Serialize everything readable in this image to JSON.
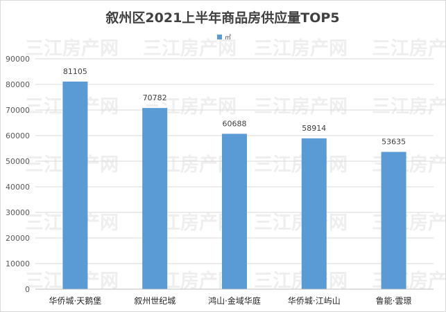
{
  "chart_data": {
    "type": "bar",
    "title": "叙州区2021上半年商品房供应量TOP5",
    "legend": {
      "label": "㎡",
      "position": "top-center"
    },
    "categories": [
      "华侨城·天鹅堡",
      "叙州世纪城",
      "鸿山·金域华庭",
      "华侨城·江屿山",
      "鲁能·雲璟"
    ],
    "series": [
      {
        "name": "㎡",
        "values": [
          81105,
          70782,
          60688,
          58914,
          53635
        ]
      }
    ],
    "data_labels": [
      "81105",
      "70782",
      "60688",
      "58914",
      "53635"
    ],
    "ylim": [
      0,
      90000
    ],
    "yticks": [
      "0",
      "10000",
      "20000",
      "30000",
      "40000",
      "50000",
      "60000",
      "70000",
      "80000",
      "90000"
    ],
    "xlabel": "",
    "ylabel": "",
    "grid": true,
    "bar_color": "#5b9bd5",
    "grid_color": "#d9d9d9"
  },
  "watermark": "三江房产网"
}
